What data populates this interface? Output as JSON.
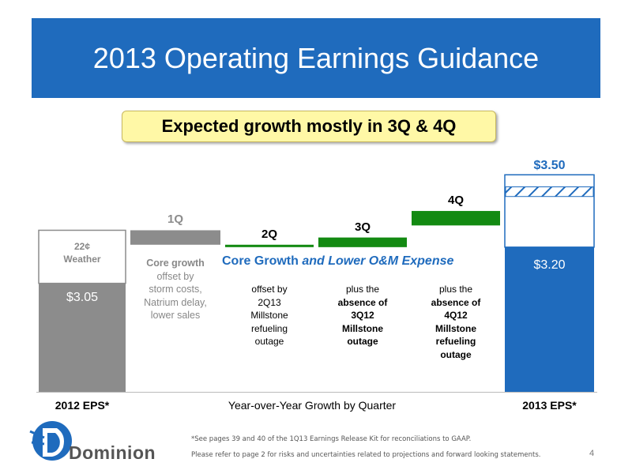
{
  "slide": {
    "title": "2013 Operating Earnings Guidance",
    "callout": "Expected growth mostly in 3Q & 4Q",
    "page_number": "4"
  },
  "colors": {
    "banner": "#1f6bbd",
    "grey_bar": "#8c8c8c",
    "green_bar": "#138a12",
    "blue_bar": "#1f6bbd",
    "core_growth_text": "#1f6bbd",
    "callout_bg": "#fff8a6"
  },
  "chart_data": {
    "type": "bar",
    "subtype": "waterfall",
    "xlabel": "Year-over-Year Growth by Quarter",
    "ylim": [
      2.6,
      3.55
    ],
    "bars": [
      {
        "id": "2012",
        "category": "2012 EPS*",
        "value": 3.05,
        "value_label": "$3.05",
        "weather_top": 3.27,
        "weather_label_value": "22¢",
        "weather_label_text": "Weather"
      },
      {
        "id": "q1",
        "category": "1Q",
        "start": 3.27,
        "end": 3.21
      },
      {
        "id": "q2",
        "category": "2Q",
        "start": 3.21,
        "end": 3.2
      },
      {
        "id": "q3",
        "category": "3Q",
        "start": 3.2,
        "end": 3.24
      },
      {
        "id": "q4",
        "category": "4Q",
        "start": 3.29,
        "end": 3.35
      },
      {
        "id": "2013",
        "category": "2013 EPS*",
        "low": 3.2,
        "high": 3.5,
        "low_label": "$3.20",
        "high_label": "$3.50",
        "hatch_low": 3.41,
        "hatch_high": 3.45
      }
    ],
    "banner_text": {
      "plain": "Core Growth",
      "italic": "and Lower O&M Expense"
    },
    "annotations": {
      "q1": [
        [
          "Core growth",
          "bold"
        ],
        [
          "offset by",
          "normal"
        ],
        [
          "storm costs,",
          "normal"
        ],
        [
          "Natrium delay,",
          "normal"
        ],
        [
          "lower sales",
          "normal"
        ]
      ],
      "q2": [
        [
          "offset by",
          "normal"
        ],
        [
          "2Q13",
          "normal"
        ],
        [
          "Millstone",
          "normal"
        ],
        [
          "refueling",
          "normal"
        ],
        [
          "outage",
          "normal"
        ]
      ],
      "q3": [
        [
          "plus the",
          "normal"
        ],
        [
          "absence of",
          "bold"
        ],
        [
          "3Q12",
          "bold"
        ],
        [
          "Millstone",
          "bold"
        ],
        [
          "outage",
          "bold"
        ]
      ],
      "q4": [
        [
          "plus the",
          "normal"
        ],
        [
          "absence of",
          "bold"
        ],
        [
          "4Q12",
          "bold"
        ],
        [
          "Millstone",
          "bold"
        ],
        [
          "refueling",
          "bold"
        ],
        [
          "outage",
          "bold"
        ]
      ]
    }
  },
  "footer": {
    "logo": "Dominion",
    "note1": "*See pages 39 and 40 of the 1Q13 Earnings Release Kit for reconciliations to GAAP.",
    "note2": "Please refer to page 2 for risks and uncertainties related to projections and forward looking statements."
  }
}
